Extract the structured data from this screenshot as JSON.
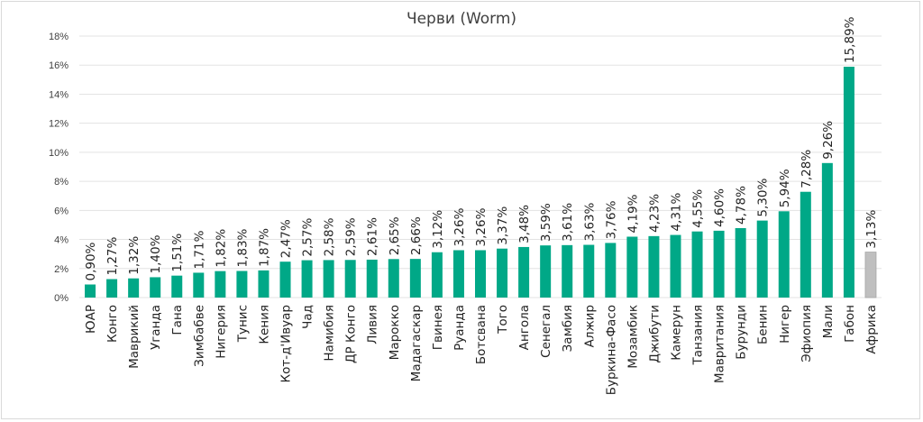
{
  "chart_data": {
    "type": "bar",
    "title": "Черви (Worm)",
    "xlabel": "",
    "ylabel": "",
    "ylim": [
      0,
      18
    ],
    "yticks": [
      "0%",
      "2%",
      "4%",
      "6%",
      "8%",
      "10%",
      "12%",
      "14%",
      "16%",
      "18%"
    ],
    "grid": true,
    "categories": [
      "ЮАР",
      "Конго",
      "Маврикий",
      "Уганда",
      "Гана",
      "Зимбабве",
      "Нигерия",
      "Тунис",
      "Кения",
      "Кот-д'Ивуар",
      "Чад",
      "Намибия",
      "ДР Конго",
      "Ливия",
      "Марокко",
      "Мадагаскар",
      "Гвинея",
      "Руанда",
      "Ботсвана",
      "Того",
      "Ангола",
      "Сенегал",
      "Замбия",
      "Алжир",
      "Буркина-Фасо",
      "Мозамбик",
      "Джибути",
      "Камерун",
      "Танзания",
      "Мавритания",
      "Бурунди",
      "Бенин",
      "Нигер",
      "Эфиопия",
      "Мали",
      "Габон",
      "Африка"
    ],
    "values": [
      0.9,
      1.27,
      1.32,
      1.4,
      1.51,
      1.71,
      1.82,
      1.83,
      1.87,
      2.47,
      2.57,
      2.58,
      2.59,
      2.61,
      2.65,
      2.66,
      3.12,
      3.26,
      3.26,
      3.37,
      3.48,
      3.59,
      3.61,
      3.63,
      3.76,
      4.19,
      4.23,
      4.31,
      4.55,
      4.6,
      4.78,
      5.3,
      5.94,
      7.28,
      9.26,
      15.89,
      3.13
    ],
    "data_labels": [
      "0,90%",
      "1,27%",
      "1,32%",
      "1,40%",
      "1,51%",
      "1,71%",
      "1,82%",
      "1,83%",
      "1,87%",
      "2,47%",
      "2,57%",
      "2,58%",
      "2,59%",
      "2,61%",
      "2,65%",
      "2,66%",
      "3,12%",
      "3,26%",
      "3,26%",
      "3,37%",
      "3,48%",
      "3,59%",
      "3,61%",
      "3,63%",
      "3,76%",
      "4,19%",
      "4,23%",
      "4,31%",
      "4,55%",
      "4,60%",
      "4,78%",
      "5,30%",
      "5,94%",
      "7,28%",
      "9,26%",
      "15,89%",
      "3,13%"
    ],
    "colors": {
      "bar": "#00A887",
      "highlight": "#BFBFBF",
      "grid": "#E3E3E3"
    },
    "highlight_category": "Африка"
  }
}
